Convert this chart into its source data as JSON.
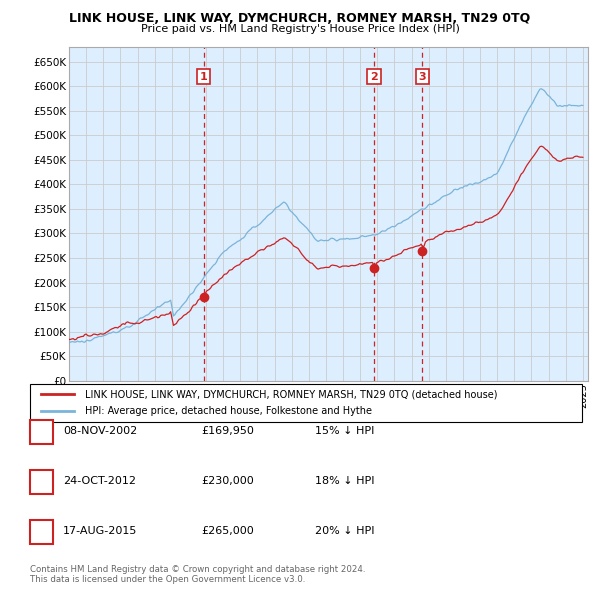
{
  "title": "LINK HOUSE, LINK WAY, DYMCHURCH, ROMNEY MARSH, TN29 0TQ",
  "subtitle": "Price paid vs. HM Land Registry's House Price Index (HPI)",
  "property_label": "LINK HOUSE, LINK WAY, DYMCHURCH, ROMNEY MARSH, TN29 0TQ (detached house)",
  "hpi_label": "HPI: Average price, detached house, Folkestone and Hythe",
  "sales": [
    {
      "num": 1,
      "date": "08-NOV-2002",
      "year": 2002.86,
      "price": 169950,
      "pct": "15% ↓ HPI"
    },
    {
      "num": 2,
      "date": "24-OCT-2012",
      "year": 2012.81,
      "price": 230000,
      "pct": "18% ↓ HPI"
    },
    {
      "num": 3,
      "date": "17-AUG-2015",
      "year": 2015.63,
      "price": 265000,
      "pct": "20% ↓ HPI"
    }
  ],
  "ylim": [
    0,
    680000
  ],
  "yticks": [
    0,
    50000,
    100000,
    150000,
    200000,
    250000,
    300000,
    350000,
    400000,
    450000,
    500000,
    550000,
    600000,
    650000
  ],
  "ytick_labels": [
    "£0",
    "£50K",
    "£100K",
    "£150K",
    "£200K",
    "£250K",
    "£300K",
    "£350K",
    "£400K",
    "£450K",
    "£500K",
    "£550K",
    "£600K",
    "£650K"
  ],
  "hpi_color": "#7ab4d8",
  "property_color": "#cc2222",
  "vline_color": "#cc2222",
  "grid_color": "#cccccc",
  "chart_bg_color": "#ddeeff",
  "bg_color": "#ffffff",
  "label_num_color": "#cc2222",
  "copyright_text": "Contains HM Land Registry data © Crown copyright and database right 2024.\nThis data is licensed under the Open Government Licence v3.0.",
  "footnote_color": "#666666"
}
